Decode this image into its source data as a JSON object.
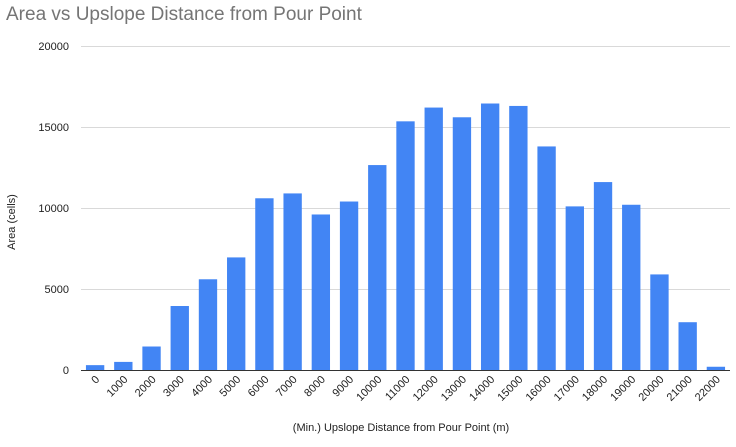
{
  "chart_data": {
    "type": "bar",
    "title": "Area vs Upslope Distance from Pour Point",
    "xlabel": "(Min.) Upslope Distance from Pour Point (m)",
    "ylabel": "Area (cells)",
    "categories": [
      "0",
      "1000",
      "2000",
      "3000",
      "4000",
      "5000",
      "6000",
      "7000",
      "8000",
      "9000",
      "10000",
      "11000",
      "12000",
      "13000",
      "14000",
      "15000",
      "16000",
      "17000",
      "18000",
      "19000",
      "20000",
      "21000",
      "22000"
    ],
    "values": [
      300,
      500,
      1450,
      3950,
      5600,
      6950,
      10600,
      10900,
      9600,
      10400,
      12650,
      15350,
      16200,
      15600,
      16450,
      16300,
      13800,
      10100,
      11600,
      10200,
      5900,
      2950,
      200
    ],
    "ylim": [
      0,
      20000
    ],
    "yticks": [
      0,
      5000,
      10000,
      15000,
      20000
    ],
    "grid": true,
    "legend": "none",
    "colors": {
      "bar": "#4285f4",
      "grid": "#d9d9d9",
      "axis": "#333333",
      "title": "#757575",
      "text": "#222222"
    }
  }
}
